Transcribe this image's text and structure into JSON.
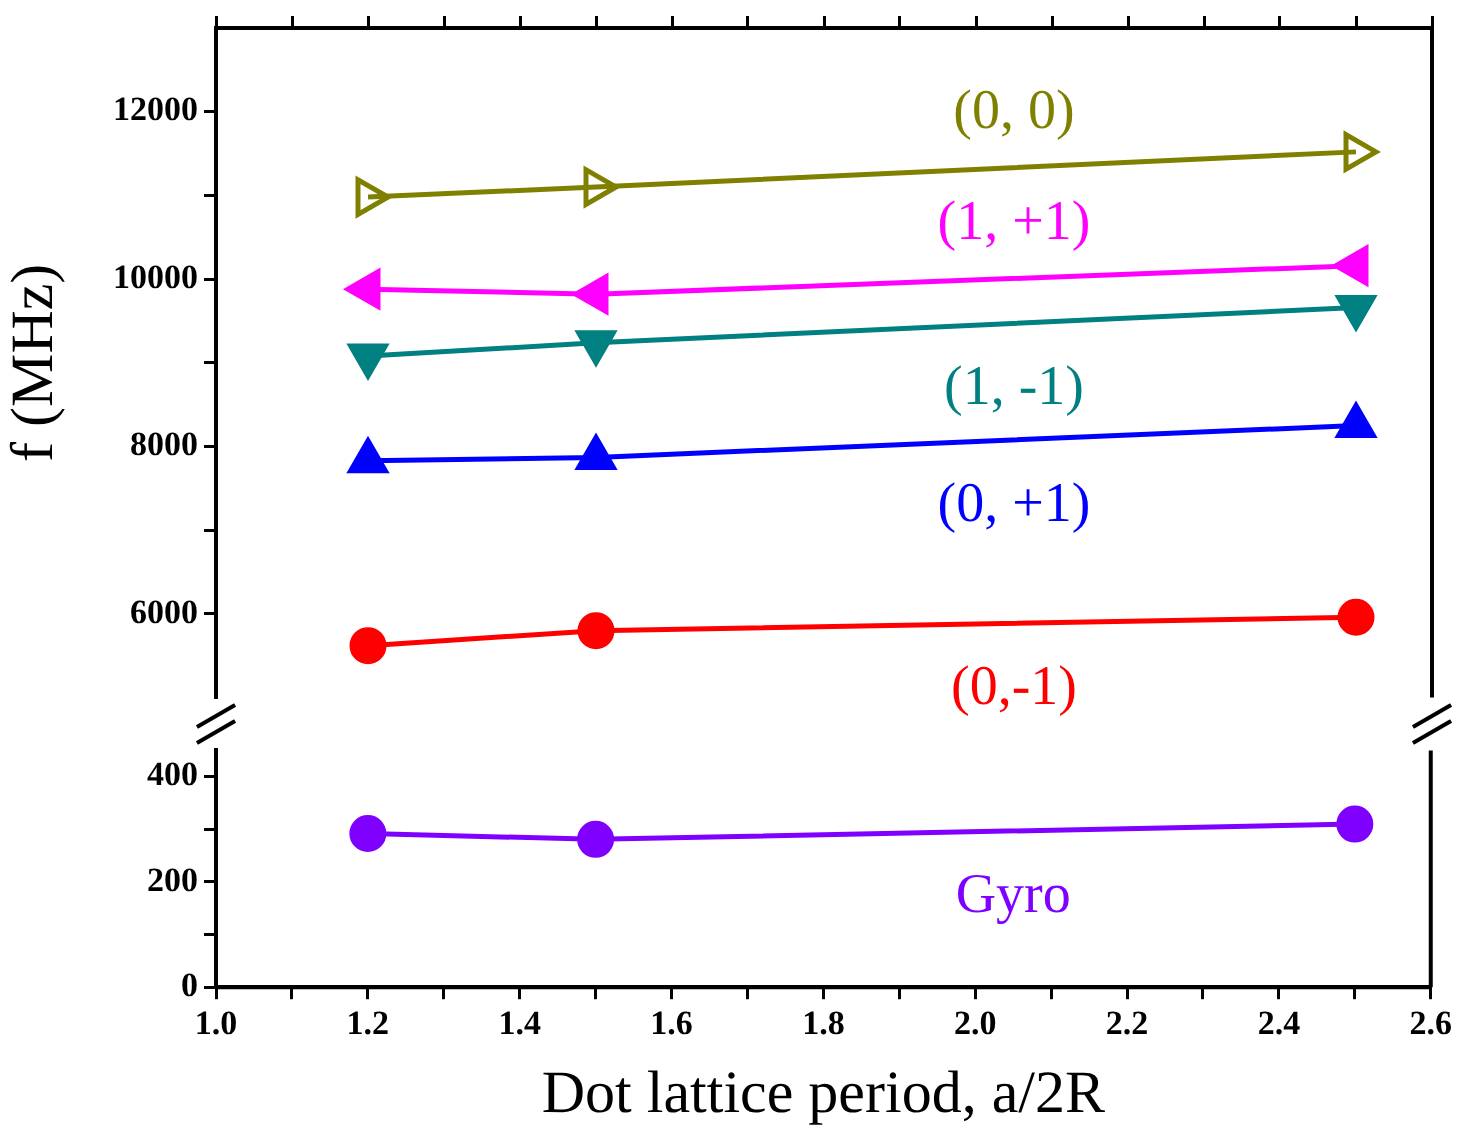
{
  "chart_data": [
    {
      "type": "line",
      "ylabel": "f (MHz)",
      "x": [
        1.2,
        1.5,
        2.5
      ],
      "xlim": [
        1,
        2.6
      ],
      "xticks": [
        {
          "value": 1,
          "label": null
        },
        {
          "value": 1.1,
          "label": null
        },
        {
          "value": 1.2,
          "label": null
        },
        {
          "value": 1.3,
          "label": null
        },
        {
          "value": 1.4,
          "label": null
        },
        {
          "value": 1.5,
          "label": null
        },
        {
          "value": 1.6,
          "label": null
        },
        {
          "value": 1.7,
          "label": null
        },
        {
          "value": 1.8,
          "label": null
        },
        {
          "value": 1.9,
          "label": null
        },
        {
          "value": 2,
          "label": null
        },
        {
          "value": 2.1,
          "label": null
        },
        {
          "value": 2.2,
          "label": null
        },
        {
          "value": 2.3,
          "label": null
        },
        {
          "value": 2.4,
          "label": null
        },
        {
          "value": 2.5,
          "label": null
        },
        {
          "value": 2.6,
          "label": null
        }
      ],
      "ylim": [
        5000,
        13000
      ],
      "yticks": [
        6000,
        {
          "value": 7000,
          "label": null
        },
        8000,
        {
          "value": 9000,
          "label": null
        },
        10000,
        {
          "value": 11000,
          "label": null
        },
        12000
      ],
      "tick_labels": "y",
      "grid": false,
      "legend": false,
      "line_style": "solid",
      "series": [
        {
          "name": "(0, 0)",
          "color": "#808000",
          "marker": "triangle",
          "values": [
            10980,
            11100,
            11520
          ]
        },
        {
          "name": "(1, +1)",
          "color": "#ff00ff",
          "marker": "triangle",
          "values": [
            9880,
            9820,
            10160
          ]
        },
        {
          "name": "(1, -1)",
          "color": "#008080",
          "marker": "triangle",
          "values": [
            9080,
            9240,
            9660
          ]
        },
        {
          "name": "(0, +1)",
          "color": "#0000ff",
          "marker": "triangle",
          "values": [
            7830,
            7870,
            8250
          ]
        },
        {
          "name": "(0,-1)",
          "color": "#ff0000",
          "marker": "circle",
          "values": [
            5620,
            5800,
            5960
          ]
        }
      ]
    },
    {
      "type": "line",
      "xlabel": "Dot lattice period, a/2R",
      "x": [
        1.2,
        1.5,
        2.5
      ],
      "xlim": [
        1,
        2.6
      ],
      "xticks": [
        {
          "value": 1,
          "label": "1.0"
        },
        {
          "value": 1.1,
          "label": null
        },
        {
          "value": 1.2,
          "label": "1.2"
        },
        {
          "value": 1.3,
          "label": null
        },
        {
          "value": 1.4,
          "label": "1.4"
        },
        {
          "value": 1.5,
          "label": null
        },
        {
          "value": 1.6,
          "label": "1.6"
        },
        {
          "value": 1.7,
          "label": null
        },
        {
          "value": 1.8,
          "label": "1.8"
        },
        {
          "value": 1.9,
          "label": null
        },
        {
          "value": 2,
          "label": "2.0"
        },
        {
          "value": 2.1,
          "label": null
        },
        {
          "value": 2.2,
          "label": "2.2"
        },
        {
          "value": 2.3,
          "label": null
        },
        {
          "value": 2.4,
          "label": "2.4"
        },
        {
          "value": 2.5,
          "label": null
        },
        {
          "value": 2.6,
          "label": "2.6"
        }
      ],
      "ylim": [
        0,
        450
      ],
      "yticks": [
        0,
        {
          "value": 100,
          "label": null
        },
        200,
        {
          "value": 300,
          "label": null
        },
        400
      ],
      "grid": false,
      "legend": false,
      "line_style": "solid",
      "series": [
        {
          "name": "Gyro",
          "color": "#8000ff",
          "marker": "circle",
          "values": [
            292,
            281,
            310
          ]
        }
      ]
    }
  ]
}
